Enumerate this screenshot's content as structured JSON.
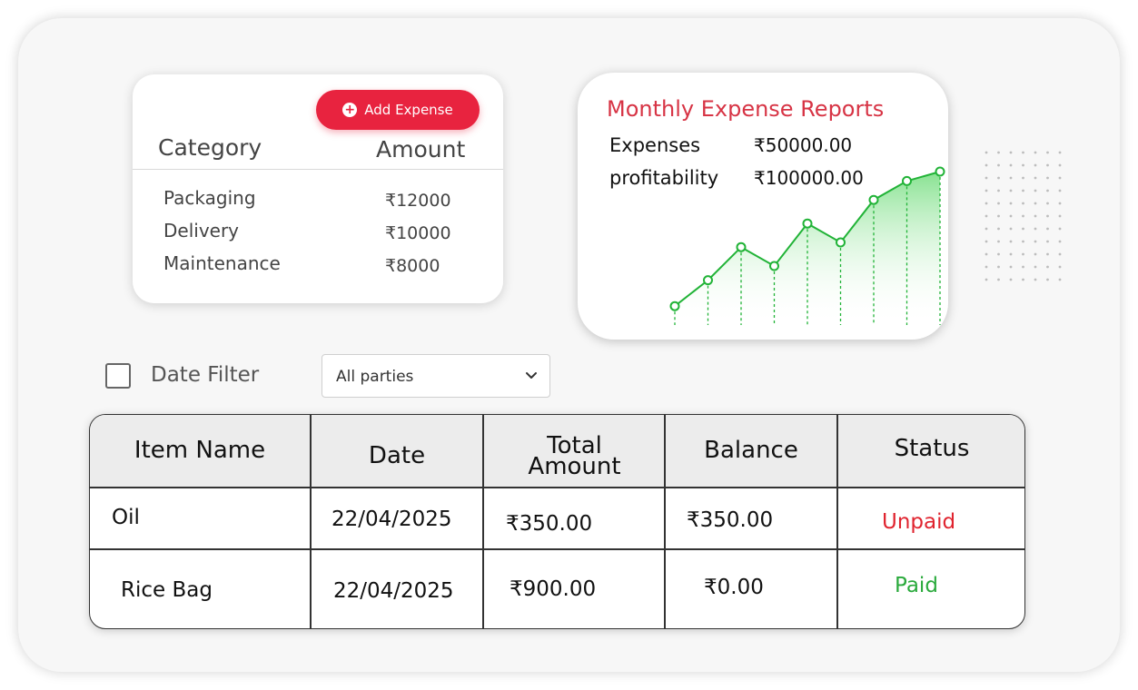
{
  "category_card": {
    "add_button_label": "Add Expense",
    "header": {
      "category": "Category",
      "amount": "Amount"
    },
    "rows": [
      {
        "name": "Packaging",
        "amount": "₹12000"
      },
      {
        "name": "Delivery",
        "amount": "₹10000"
      },
      {
        "name": "Maintenance",
        "amount": "₹8000"
      }
    ]
  },
  "report_card": {
    "title": "Monthly Expense Reports",
    "expenses_label": "Expenses",
    "expenses_value": "₹50000.00",
    "profit_label": "profitability",
    "profit_value": "₹100000.00",
    "colors": {
      "title": "#d73445",
      "line": "#21b337"
    }
  },
  "chart_data": {
    "type": "area",
    "title": "",
    "xlabel": "",
    "ylabel": "",
    "x": [
      1,
      2,
      3,
      4,
      5,
      6,
      7,
      8,
      9
    ],
    "values": [
      8,
      19,
      33,
      25,
      43,
      35,
      53,
      61,
      65
    ],
    "ylim": [
      0,
      70
    ],
    "grid": false
  },
  "filter": {
    "date_filter_label": "Date Filter",
    "party_select_value": "All parties"
  },
  "table": {
    "headers": {
      "item_name": "Item Name",
      "date": "Date",
      "total_amount_line1": "Total",
      "total_amount_line2": "Amount",
      "balance": "Balance",
      "status": "Status"
    },
    "rows": [
      {
        "item": "Oil",
        "date": "22/04/2025",
        "total": "₹350.00",
        "balance": "₹350.00",
        "status": "Unpaid"
      },
      {
        "item": "Rice Bag",
        "date": "22/04/2025",
        "total": "₹900.00",
        "balance": "₹0.00",
        "status": "Paid"
      }
    ],
    "status_colors": {
      "unpaid": "#e0242f",
      "paid": "#2aaa3c"
    }
  },
  "accent_color": "#e8233f"
}
